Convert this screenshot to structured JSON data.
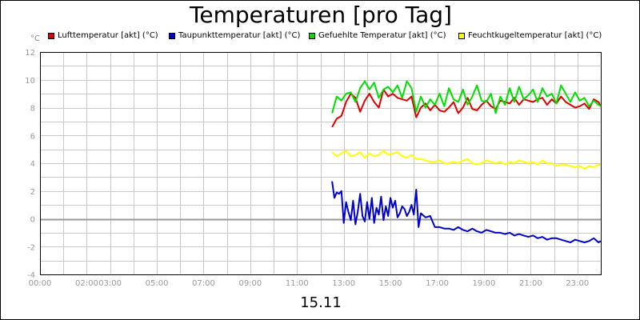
{
  "title": "Temperaturen [pro Tag]",
  "unit": "°C",
  "x_caption": "15.11",
  "chart_data": {
    "type": "line",
    "title": "Temperaturen [pro Tag]",
    "xlabel": "15.11",
    "ylabel": "°C",
    "xlim": [
      0,
      24
    ],
    "ylim": [
      -4,
      12
    ],
    "grid": true,
    "legend_position": "top",
    "y_ticks": [
      "12",
      "10",
      "8",
      "6",
      "4",
      "2",
      "0",
      "-2",
      "-4"
    ],
    "x_ticks": [
      "00:00",
      "02:00",
      "03:00",
      "05:00",
      "07:00",
      "09:00",
      "11:00",
      "13:00",
      "15:00",
      "17:00",
      "19:00",
      "21:00",
      "23:00"
    ],
    "series": [
      {
        "name": "Lufttemperatur [akt] (°C)",
        "color": "#e00000",
        "x": [
          12.5,
          12.7,
          12.9,
          13.1,
          13.3,
          13.5,
          13.7,
          13.9,
          14.1,
          14.3,
          14.5,
          14.7,
          14.9,
          15.1,
          15.3,
          15.5,
          15.7,
          15.9,
          16.1,
          16.3,
          16.5,
          16.7,
          16.9,
          17.1,
          17.3,
          17.5,
          17.7,
          17.9,
          18.1,
          18.3,
          18.5,
          18.7,
          18.9,
          19.1,
          19.3,
          19.5,
          19.7,
          19.9,
          20.1,
          20.3,
          20.5,
          20.7,
          20.9,
          21.1,
          21.3,
          21.5,
          21.7,
          21.9,
          22.1,
          22.3,
          22.5,
          22.7,
          22.9,
          23.1,
          23.3,
          23.5,
          23.7,
          23.9,
          24.0
        ],
        "y": [
          6.6,
          7.2,
          7.4,
          8.4,
          9.0,
          8.7,
          7.7,
          8.5,
          9.0,
          8.4,
          8.0,
          9.3,
          8.8,
          9.0,
          8.7,
          8.6,
          8.5,
          8.8,
          7.3,
          8.0,
          8.3,
          7.8,
          8.2,
          7.8,
          7.7,
          8.0,
          8.4,
          7.6,
          8.0,
          8.7,
          7.9,
          7.8,
          8.2,
          8.5,
          8.1,
          7.9,
          8.5,
          8.4,
          8.3,
          8.7,
          8.2,
          8.6,
          8.5,
          8.4,
          8.6,
          8.7,
          8.2,
          8.6,
          8.3,
          8.8,
          8.4,
          8.2,
          8.0,
          8.1,
          8.3,
          7.9,
          8.6,
          8.4,
          8.1
        ]
      },
      {
        "name": "Taupunkttemperatur [akt] (°C)",
        "color": "#0000cc",
        "x": [
          12.5,
          12.6,
          12.7,
          12.8,
          12.9,
          13.0,
          13.1,
          13.2,
          13.3,
          13.4,
          13.5,
          13.6,
          13.7,
          13.8,
          13.9,
          14.0,
          14.1,
          14.2,
          14.3,
          14.4,
          14.5,
          14.6,
          14.7,
          14.8,
          14.9,
          15.0,
          15.1,
          15.2,
          15.3,
          15.4,
          15.5,
          15.6,
          15.7,
          15.8,
          15.9,
          16.0,
          16.1,
          16.2,
          16.3,
          16.5,
          16.7,
          16.9,
          17.1,
          17.3,
          17.5,
          17.7,
          17.9,
          18.1,
          18.3,
          18.5,
          18.7,
          18.9,
          19.1,
          19.3,
          19.5,
          19.7,
          19.9,
          20.1,
          20.3,
          20.5,
          20.7,
          20.9,
          21.1,
          21.3,
          21.5,
          21.7,
          21.9,
          22.1,
          22.3,
          22.5,
          22.7,
          22.9,
          23.1,
          23.3,
          23.5,
          23.7,
          23.9,
          24.0
        ],
        "y": [
          2.7,
          1.5,
          1.9,
          1.8,
          2.0,
          -0.3,
          1.2,
          0.5,
          -0.1,
          1.3,
          -0.4,
          0.5,
          1.8,
          0.2,
          -0.2,
          1.2,
          0.0,
          1.5,
          -0.3,
          0.8,
          0.3,
          1.6,
          -0.1,
          0.9,
          0.2,
          1.5,
          0.8,
          1.3,
          0.1,
          0.4,
          0.9,
          0.7,
          0.2,
          0.5,
          1.0,
          0.3,
          2.1,
          -0.6,
          0.4,
          0.1,
          0.2,
          -0.6,
          -0.6,
          -0.7,
          -0.7,
          -0.8,
          -0.6,
          -0.8,
          -0.9,
          -0.7,
          -0.9,
          -1.0,
          -0.8,
          -0.9,
          -1.0,
          -1.0,
          -1.1,
          -1.0,
          -1.2,
          -1.1,
          -1.2,
          -1.3,
          -1.2,
          -1.4,
          -1.3,
          -1.5,
          -1.4,
          -1.4,
          -1.5,
          -1.6,
          -1.7,
          -1.5,
          -1.6,
          -1.7,
          -1.6,
          -1.4,
          -1.7,
          -1.6
        ]
      },
      {
        "name": "Gefuehlte Temperatur [akt] (°C)",
        "color": "#00e000",
        "x": [
          12.5,
          12.7,
          12.9,
          13.1,
          13.3,
          13.5,
          13.7,
          13.9,
          14.1,
          14.3,
          14.5,
          14.7,
          14.9,
          15.1,
          15.3,
          15.5,
          15.7,
          15.9,
          16.1,
          16.3,
          16.5,
          16.7,
          16.9,
          17.1,
          17.3,
          17.5,
          17.7,
          17.9,
          18.1,
          18.3,
          18.5,
          18.7,
          18.9,
          19.1,
          19.3,
          19.5,
          19.7,
          19.9,
          20.1,
          20.3,
          20.5,
          20.7,
          20.9,
          21.1,
          21.3,
          21.5,
          21.7,
          21.9,
          22.1,
          22.3,
          22.5,
          22.7,
          22.9,
          23.1,
          23.3,
          23.5,
          23.7,
          23.9,
          24.0
        ],
        "y": [
          7.6,
          8.8,
          8.5,
          9.0,
          9.1,
          8.4,
          9.4,
          9.9,
          9.3,
          9.8,
          8.7,
          9.3,
          9.5,
          9.1,
          9.6,
          8.7,
          9.9,
          9.4,
          7.7,
          8.8,
          8.0,
          8.6,
          8.2,
          9.0,
          8.1,
          9.4,
          8.6,
          8.4,
          9.3,
          8.2,
          8.8,
          9.6,
          8.5,
          8.4,
          9.0,
          7.6,
          8.8,
          8.2,
          9.4,
          8.4,
          9.5,
          8.6,
          8.9,
          9.3,
          8.4,
          9.4,
          8.8,
          9.0,
          8.3,
          9.6,
          9.0,
          8.4,
          9.1,
          8.5,
          8.7,
          8.1,
          8.5,
          8.2,
          8.1
        ]
      },
      {
        "name": "Feuchtkugeltemperatur [akt] (°C)",
        "color": "#ffff00",
        "x": [
          12.5,
          12.7,
          12.9,
          13.1,
          13.3,
          13.5,
          13.7,
          13.9,
          14.1,
          14.3,
          14.5,
          14.7,
          14.9,
          15.1,
          15.3,
          15.5,
          15.7,
          15.9,
          16.1,
          16.3,
          16.5,
          16.7,
          16.9,
          17.1,
          17.3,
          17.5,
          17.7,
          17.9,
          18.1,
          18.3,
          18.5,
          18.7,
          18.9,
          19.1,
          19.3,
          19.5,
          19.7,
          19.9,
          20.1,
          20.3,
          20.5,
          20.7,
          20.9,
          21.1,
          21.3,
          21.5,
          21.7,
          21.9,
          22.1,
          22.3,
          22.5,
          22.7,
          22.9,
          23.1,
          23.3,
          23.5,
          23.7,
          23.9,
          24.0
        ],
        "y": [
          4.8,
          4.5,
          4.7,
          4.9,
          4.5,
          4.6,
          4.8,
          4.4,
          4.7,
          4.5,
          4.6,
          4.9,
          4.6,
          4.7,
          4.8,
          4.5,
          4.4,
          4.6,
          4.3,
          4.3,
          4.2,
          4.1,
          4.1,
          4.2,
          4.0,
          4.0,
          4.1,
          4.0,
          4.2,
          4.3,
          4.0,
          3.9,
          4.0,
          4.2,
          4.1,
          4.0,
          4.1,
          3.9,
          4.1,
          4.0,
          4.2,
          4.1,
          4.0,
          4.1,
          3.9,
          4.2,
          4.0,
          4.0,
          3.8,
          3.9,
          3.9,
          3.8,
          3.7,
          3.8,
          3.6,
          3.8,
          3.7,
          3.9,
          3.9
        ]
      }
    ]
  }
}
